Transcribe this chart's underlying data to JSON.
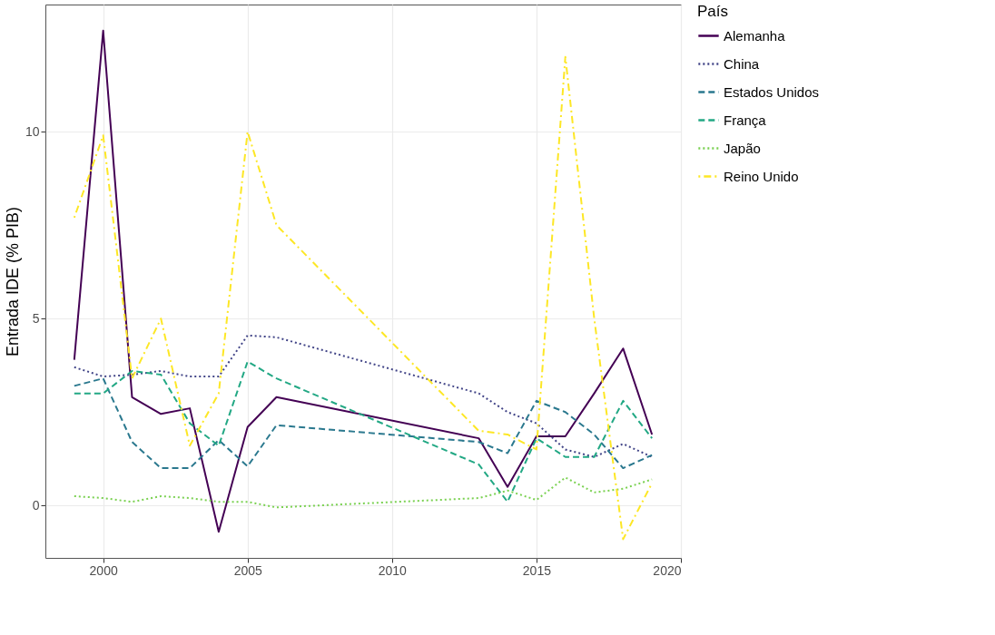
{
  "chart_data": {
    "type": "line",
    "ylabel": "Entrada IDE (% PIB)",
    "legend_title": "País",
    "legend": "right",
    "x": [
      1999,
      2000,
      2001,
      2002,
      2003,
      2004,
      2005,
      2006,
      2013,
      2014,
      2015,
      2016,
      2017,
      2018,
      2019
    ],
    "xlim": [
      1998,
      2020
    ],
    "xticks": [
      2000,
      2005,
      2010,
      2015,
      2020
    ],
    "ylim": [
      -1.4,
      13.4
    ],
    "yticks": [
      0,
      5,
      10
    ],
    "grid": true,
    "series": [
      {
        "name": "Alemanha",
        "color": "#440154",
        "line_style": "solid",
        "values": [
          3.9,
          12.7,
          2.9,
          2.45,
          2.6,
          -0.7,
          2.1,
          2.9,
          1.8,
          0.5,
          1.85,
          1.85,
          3.0,
          4.2,
          1.9
        ]
      },
      {
        "name": "China",
        "color": "#414487",
        "line_style": "dotted",
        "values": [
          3.7,
          3.45,
          3.5,
          3.6,
          3.45,
          3.45,
          4.55,
          4.5,
          3.0,
          2.5,
          2.2,
          1.5,
          1.3,
          1.65,
          1.3
        ]
      },
      {
        "name": "Estados Unidos",
        "color": "#2a788e",
        "line_style": "dashed",
        "values": [
          3.2,
          3.4,
          1.7,
          1.0,
          1.0,
          1.75,
          1.05,
          2.15,
          1.7,
          1.4,
          2.8,
          2.5,
          1.9,
          1.0,
          1.35
        ]
      },
      {
        "name": "França",
        "color": "#22a884",
        "line_style": "dashed",
        "values": [
          3.0,
          3.0,
          3.6,
          3.5,
          2.2,
          1.6,
          3.85,
          3.4,
          1.1,
          0.1,
          1.8,
          1.3,
          1.3,
          2.8,
          1.8
        ]
      },
      {
        "name": "Japão",
        "color": "#7ad151",
        "line_style": "dotted",
        "values": [
          0.25,
          0.2,
          0.1,
          0.25,
          0.2,
          0.1,
          0.1,
          -0.05,
          0.2,
          0.4,
          0.15,
          0.75,
          0.35,
          0.45,
          0.7
        ]
      },
      {
        "name": "Reino Unido",
        "color": "#fde725",
        "line_style": "dashdot",
        "values": [
          7.7,
          9.9,
          3.4,
          5.0,
          1.6,
          3.0,
          10.0,
          7.5,
          2.0,
          1.9,
          1.5,
          12.0,
          5.0,
          -0.9,
          0.6
        ]
      }
    ]
  }
}
